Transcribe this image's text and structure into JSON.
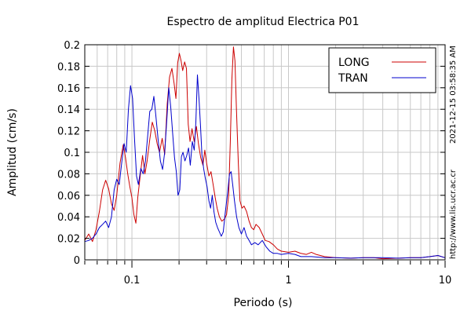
{
  "chart_data": {
    "type": "line",
    "title": "Espectro de amplitud Electrica P01",
    "xlabel": "Periodo (s)",
    "ylabel": "Amplitud (cm/s)",
    "xscale": "log",
    "xlim": [
      0.05,
      10
    ],
    "ylim": [
      0,
      0.2
    ],
    "grid": true,
    "legend_position": "top-right",
    "x_ticks": [
      {
        "value": 0.1,
        "label": "0.1"
      },
      {
        "value": 1,
        "label": "1"
      },
      {
        "value": 10,
        "label": "10"
      }
    ],
    "y_ticks": [
      {
        "value": 0,
        "label": "0"
      },
      {
        "value": 0.02,
        "label": "0.02"
      },
      {
        "value": 0.04,
        "label": "0.04"
      },
      {
        "value": 0.06,
        "label": "0.06"
      },
      {
        "value": 0.08,
        "label": "0.08"
      },
      {
        "value": 0.1,
        "label": "0.1"
      },
      {
        "value": 0.12,
        "label": "0.12"
      },
      {
        "value": 0.14,
        "label": "0.14"
      },
      {
        "value": 0.16,
        "label": "0.16"
      },
      {
        "value": 0.18,
        "label": "0.18"
      },
      {
        "value": 0.2,
        "label": "0.2"
      }
    ],
    "side_text": [
      "http://www.lis.ucr.ac.cr",
      "2021-12-15 03:58:35 AM"
    ],
    "series": [
      {
        "name": "LONG",
        "color": "#cc0000",
        "points": [
          [
            0.05,
            0.018
          ],
          [
            0.053,
            0.024
          ],
          [
            0.056,
            0.017
          ],
          [
            0.059,
            0.028
          ],
          [
            0.062,
            0.045
          ],
          [
            0.065,
            0.065
          ],
          [
            0.068,
            0.074
          ],
          [
            0.071,
            0.066
          ],
          [
            0.074,
            0.052
          ],
          [
            0.077,
            0.046
          ],
          [
            0.08,
            0.06
          ],
          [
            0.084,
            0.09
          ],
          [
            0.088,
            0.107
          ],
          [
            0.091,
            0.095
          ],
          [
            0.094,
            0.08
          ],
          [
            0.097,
            0.068
          ],
          [
            0.1,
            0.058
          ],
          [
            0.103,
            0.042
          ],
          [
            0.106,
            0.034
          ],
          [
            0.109,
            0.058
          ],
          [
            0.113,
            0.078
          ],
          [
            0.117,
            0.097
          ],
          [
            0.121,
            0.08
          ],
          [
            0.125,
            0.092
          ],
          [
            0.13,
            0.112
          ],
          [
            0.135,
            0.128
          ],
          [
            0.14,
            0.12
          ],
          [
            0.145,
            0.108
          ],
          [
            0.15,
            0.1
          ],
          [
            0.156,
            0.113
          ],
          [
            0.162,
            0.098
          ],
          [
            0.168,
            0.145
          ],
          [
            0.174,
            0.17
          ],
          [
            0.18,
            0.178
          ],
          [
            0.186,
            0.164
          ],
          [
            0.191,
            0.15
          ],
          [
            0.196,
            0.183
          ],
          [
            0.201,
            0.192
          ],
          [
            0.206,
            0.185
          ],
          [
            0.211,
            0.176
          ],
          [
            0.217,
            0.184
          ],
          [
            0.223,
            0.178
          ],
          [
            0.229,
            0.126
          ],
          [
            0.235,
            0.11
          ],
          [
            0.242,
            0.122
          ],
          [
            0.25,
            0.11
          ],
          [
            0.258,
            0.124
          ],
          [
            0.266,
            0.108
          ],
          [
            0.275,
            0.095
          ],
          [
            0.284,
            0.088
          ],
          [
            0.292,
            0.102
          ],
          [
            0.3,
            0.09
          ],
          [
            0.31,
            0.078
          ],
          [
            0.32,
            0.082
          ],
          [
            0.33,
            0.07
          ],
          [
            0.34,
            0.058
          ],
          [
            0.35,
            0.048
          ],
          [
            0.362,
            0.04
          ],
          [
            0.375,
            0.036
          ],
          [
            0.39,
            0.038
          ],
          [
            0.402,
            0.042
          ],
          [
            0.415,
            0.06
          ],
          [
            0.425,
            0.11
          ],
          [
            0.435,
            0.168
          ],
          [
            0.445,
            0.198
          ],
          [
            0.455,
            0.185
          ],
          [
            0.465,
            0.14
          ],
          [
            0.478,
            0.09
          ],
          [
            0.49,
            0.055
          ],
          [
            0.505,
            0.048
          ],
          [
            0.52,
            0.05
          ],
          [
            0.54,
            0.045
          ],
          [
            0.56,
            0.036
          ],
          [
            0.58,
            0.03
          ],
          [
            0.6,
            0.028
          ],
          [
            0.62,
            0.033
          ],
          [
            0.65,
            0.03
          ],
          [
            0.68,
            0.024
          ],
          [
            0.71,
            0.018
          ],
          [
            0.75,
            0.017
          ],
          [
            0.8,
            0.014
          ],
          [
            0.85,
            0.01
          ],
          [
            0.9,
            0.008
          ],
          [
            1.0,
            0.007
          ],
          [
            1.1,
            0.008
          ],
          [
            1.2,
            0.006
          ],
          [
            1.3,
            0.005
          ],
          [
            1.4,
            0.007
          ],
          [
            1.5,
            0.005
          ],
          [
            1.7,
            0.003
          ],
          [
            2.0,
            0.002
          ],
          [
            2.5,
            0.0015
          ],
          [
            3.0,
            0.002
          ],
          [
            3.5,
            0.002
          ],
          [
            4.0,
            0.001
          ],
          [
            5.0,
            0.0015
          ],
          [
            6.0,
            0.002
          ],
          [
            7.0,
            0.002
          ],
          [
            8.0,
            0.003
          ],
          [
            9.0,
            0.004
          ],
          [
            10.0,
            0.002
          ]
        ]
      },
      {
        "name": "TRAN",
        "color": "#0000cc",
        "points": [
          [
            0.05,
            0.017
          ],
          [
            0.053,
            0.018
          ],
          [
            0.056,
            0.02
          ],
          [
            0.059,
            0.024
          ],
          [
            0.062,
            0.03
          ],
          [
            0.065,
            0.033
          ],
          [
            0.068,
            0.036
          ],
          [
            0.071,
            0.03
          ],
          [
            0.074,
            0.04
          ],
          [
            0.077,
            0.065
          ],
          [
            0.08,
            0.075
          ],
          [
            0.083,
            0.07
          ],
          [
            0.086,
            0.09
          ],
          [
            0.089,
            0.108
          ],
          [
            0.092,
            0.1
          ],
          [
            0.095,
            0.14
          ],
          [
            0.098,
            0.162
          ],
          [
            0.101,
            0.15
          ],
          [
            0.104,
            0.112
          ],
          [
            0.107,
            0.078
          ],
          [
            0.11,
            0.07
          ],
          [
            0.114,
            0.085
          ],
          [
            0.118,
            0.08
          ],
          [
            0.122,
            0.092
          ],
          [
            0.126,
            0.115
          ],
          [
            0.13,
            0.138
          ],
          [
            0.134,
            0.14
          ],
          [
            0.138,
            0.152
          ],
          [
            0.142,
            0.135
          ],
          [
            0.147,
            0.112
          ],
          [
            0.152,
            0.092
          ],
          [
            0.157,
            0.084
          ],
          [
            0.162,
            0.1
          ],
          [
            0.167,
            0.13
          ],
          [
            0.172,
            0.16
          ],
          [
            0.177,
            0.142
          ],
          [
            0.182,
            0.118
          ],
          [
            0.187,
            0.095
          ],
          [
            0.192,
            0.082
          ],
          [
            0.197,
            0.06
          ],
          [
            0.202,
            0.065
          ],
          [
            0.207,
            0.096
          ],
          [
            0.212,
            0.1
          ],
          [
            0.218,
            0.092
          ],
          [
            0.224,
            0.097
          ],
          [
            0.23,
            0.104
          ],
          [
            0.236,
            0.088
          ],
          [
            0.243,
            0.11
          ],
          [
            0.25,
            0.102
          ],
          [
            0.256,
            0.128
          ],
          [
            0.262,
            0.172
          ],
          [
            0.268,
            0.15
          ],
          [
            0.274,
            0.125
          ],
          [
            0.28,
            0.098
          ],
          [
            0.287,
            0.085
          ],
          [
            0.294,
            0.076
          ],
          [
            0.302,
            0.068
          ],
          [
            0.31,
            0.055
          ],
          [
            0.318,
            0.048
          ],
          [
            0.326,
            0.06
          ],
          [
            0.334,
            0.045
          ],
          [
            0.343,
            0.035
          ],
          [
            0.352,
            0.03
          ],
          [
            0.362,
            0.026
          ],
          [
            0.372,
            0.022
          ],
          [
            0.383,
            0.026
          ],
          [
            0.395,
            0.045
          ],
          [
            0.408,
            0.062
          ],
          [
            0.42,
            0.08
          ],
          [
            0.43,
            0.082
          ],
          [
            0.44,
            0.07
          ],
          [
            0.452,
            0.055
          ],
          [
            0.466,
            0.04
          ],
          [
            0.482,
            0.03
          ],
          [
            0.5,
            0.024
          ],
          [
            0.52,
            0.03
          ],
          [
            0.54,
            0.022
          ],
          [
            0.56,
            0.018
          ],
          [
            0.58,
            0.014
          ],
          [
            0.61,
            0.016
          ],
          [
            0.64,
            0.014
          ],
          [
            0.68,
            0.018
          ],
          [
            0.72,
            0.012
          ],
          [
            0.76,
            0.008
          ],
          [
            0.8,
            0.006
          ],
          [
            0.85,
            0.006
          ],
          [
            0.9,
            0.005
          ],
          [
            1.0,
            0.006
          ],
          [
            1.1,
            0.005
          ],
          [
            1.2,
            0.003
          ],
          [
            1.4,
            0.003
          ],
          [
            1.7,
            0.002
          ],
          [
            2.0,
            0.002
          ],
          [
            2.5,
            0.0015
          ],
          [
            3.0,
            0.002
          ],
          [
            4.0,
            0.002
          ],
          [
            5.0,
            0.0015
          ],
          [
            6.0,
            0.002
          ],
          [
            7.0,
            0.002
          ],
          [
            8.0,
            0.003
          ],
          [
            9.0,
            0.004
          ],
          [
            10.0,
            0.002
          ]
        ]
      }
    ]
  }
}
